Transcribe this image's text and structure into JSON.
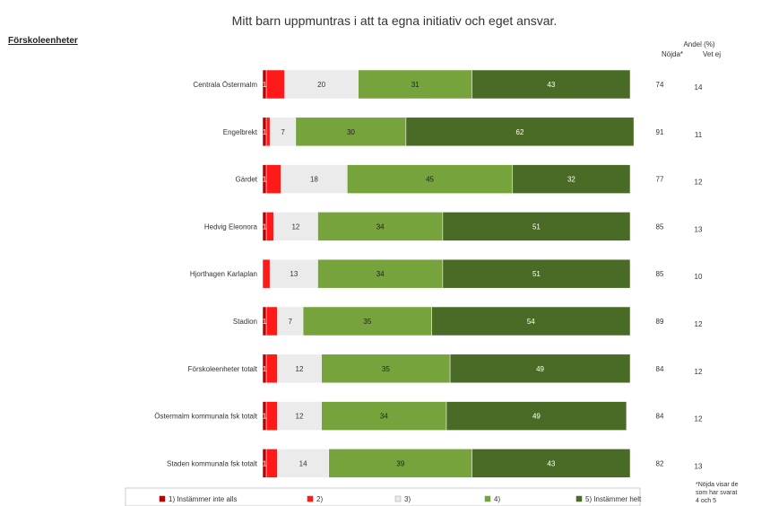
{
  "chart_data": {
    "type": "bar",
    "orientation": "horizontal",
    "stacked": true,
    "title": "Mitt barn uppmuntras i att ta egna initiativ och eget ansvar.",
    "section_heading": "Förskoleenheter",
    "columns_header": {
      "line1": "Andel (%)",
      "col1": "Nöjda*",
      "col2": "Vet ej"
    },
    "categories": [
      "Centrala Östermalm",
      "Engelbrekt",
      "Gärdet",
      "Hedvig Eleonora",
      "Hjorthagen Karlaplan",
      "Stadion",
      "Förskoleenheter totalt",
      "Östermalm kommunala fsk totalt",
      "Staden kommunala fsk totalt"
    ],
    "series": [
      {
        "name": "1) Instämmer inte alls",
        "color": "#c00000",
        "text_color": "#ffffff",
        "values": [
          1,
          1,
          1,
          1,
          0,
          1,
          1,
          1,
          1
        ]
      },
      {
        "name": "2)",
        "color": "#ff1a1a",
        "text_color": "#ffffff",
        "values": [
          5,
          1,
          4,
          2,
          2,
          3,
          3,
          3,
          3
        ]
      },
      {
        "name": "3)",
        "color": "#ebebeb",
        "text_color": "#333333",
        "values": [
          20,
          7,
          18,
          12,
          13,
          7,
          12,
          12,
          14
        ]
      },
      {
        "name": "4)",
        "color": "#77a33c",
        "text_color": "#222222",
        "values": [
          31,
          30,
          45,
          34,
          34,
          35,
          35,
          34,
          39
        ]
      },
      {
        "name": "5) Instämmer helt",
        "color": "#4a6b26",
        "text_color": "#ffffff",
        "values": [
          43,
          62,
          32,
          51,
          51,
          54,
          49,
          49,
          43
        ]
      }
    ],
    "segment_labels": [
      [
        "1",
        "",
        "20",
        "31",
        "43"
      ],
      [
        "1",
        "",
        "7",
        "30",
        "62"
      ],
      [
        "1",
        "",
        "18",
        "45",
        "32"
      ],
      [
        "1",
        "",
        "12",
        "34",
        "51"
      ],
      [
        "",
        "",
        "13",
        "34",
        "51"
      ],
      [
        "1",
        "",
        "7",
        "35",
        "54"
      ],
      [
        "1",
        "",
        "12",
        "35",
        "49"
      ],
      [
        "1",
        "",
        "12",
        "34",
        "49"
      ],
      [
        "1",
        "",
        "14",
        "39",
        "43"
      ]
    ],
    "nojda": [
      "74",
      "91",
      "77",
      "85",
      "85",
      "89",
      "84",
      "84",
      "82"
    ],
    "vet_ej": [
      "14",
      "11",
      "12",
      "13",
      "10",
      "12",
      "12",
      "12",
      "13"
    ],
    "footnote": [
      "*Nöjda visar de",
      "som har svarat",
      "4 och 5"
    ],
    "xlim": [
      0,
      100
    ],
    "legend": "bottom"
  }
}
